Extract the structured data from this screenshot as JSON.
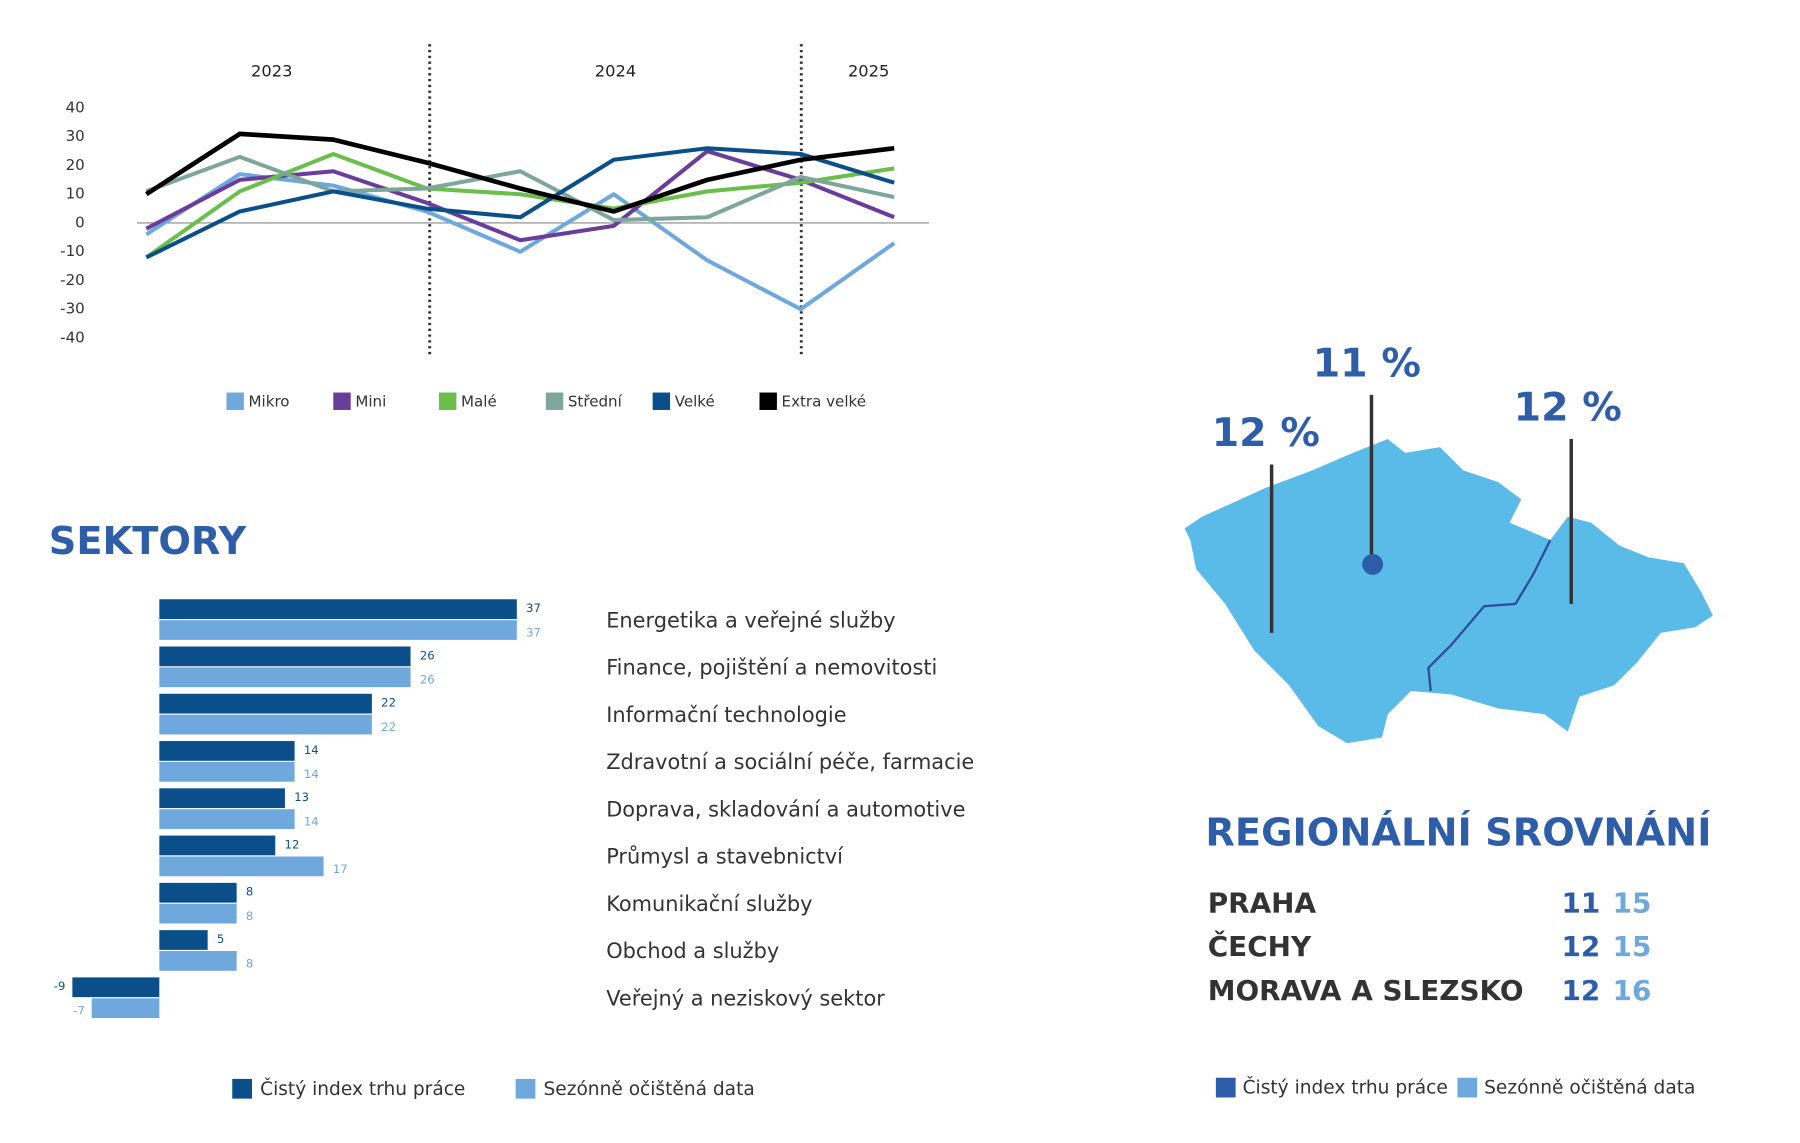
{
  "chart_data": [
    {
      "type": "line",
      "year_labels": [
        "2023",
        "2024",
        "2025"
      ],
      "categories": [
        null,
        null,
        null,
        null,
        null,
        null,
        null,
        null,
        null
      ],
      "ylim": [
        -40,
        40
      ],
      "yticks": [
        40,
        30,
        20,
        10,
        0,
        -10,
        -20,
        -30,
        -40
      ],
      "series": [
        {
          "name": "Mikro",
          "color": "#6fa8dc",
          "values": [
            -4,
            17,
            13,
            4,
            -10,
            10,
            -13,
            -30,
            -7
          ]
        },
        {
          "name": "Mini",
          "color": "#6a3d9a",
          "values": [
            -2,
            15,
            18,
            7,
            -6,
            -1,
            25,
            15,
            2
          ]
        },
        {
          "name": "Malé",
          "color": "#6abf4b",
          "values": [
            -12,
            11,
            24,
            12,
            10,
            5,
            11,
            14,
            19
          ]
        },
        {
          "name": "Střední",
          "color": "#7fa69b",
          "values": [
            11,
            23,
            11,
            12,
            18,
            1,
            2,
            16,
            9
          ]
        },
        {
          "name": "Velké",
          "color": "#0b4f8a",
          "values": [
            -12,
            4,
            11,
            5,
            2,
            22,
            26,
            24,
            14
          ]
        },
        {
          "name": "Extra velké",
          "color": "#000000",
          "values": [
            10,
            31,
            29,
            21,
            12,
            4,
            15,
            22,
            26
          ]
        }
      ]
    },
    {
      "type": "hbar",
      "title": "SEKTORY",
      "xlim": [
        -10,
        40
      ],
      "categories": [
        "Energetika a veřejné služby",
        "Finance, pojištění a nemovitosti",
        "Informační technologie",
        "Zdravotní a sociální péče, farmacie",
        "Doprava, skladování a automotive",
        "Průmysl a stavebnictví",
        "Komunikační služby",
        "Obchod a služby",
        "Veřejný a neziskový sektor"
      ],
      "series": [
        {
          "name": "Čistý index trhu práce",
          "color": "#0b4f8a",
          "values": [
            37,
            26,
            22,
            14,
            13,
            12,
            8,
            5,
            -9
          ]
        },
        {
          "name": "Sezónně očištěná data",
          "color": "#6fa8dc",
          "values": [
            37,
            26,
            22,
            14,
            14,
            17,
            8,
            8,
            -7
          ]
        }
      ]
    }
  ],
  "regional": {
    "title": "REGIONÁLNÍ SROVNÁNÍ",
    "map_labels": [
      "12 %",
      "11 %",
      "12 %"
    ],
    "rows": [
      {
        "name": "PRAHA",
        "values": [
          11,
          15
        ]
      },
      {
        "name": "ČECHY",
        "values": [
          12,
          15
        ]
      },
      {
        "name": "MORAVA A SLEZSKO",
        "values": [
          12,
          16
        ]
      }
    ],
    "legend": [
      {
        "name": "Čistý index trhu práce",
        "color": "#2d5da8"
      },
      {
        "name": "Sezónně očištěná data",
        "color": "#6fa8dc"
      }
    ]
  }
}
